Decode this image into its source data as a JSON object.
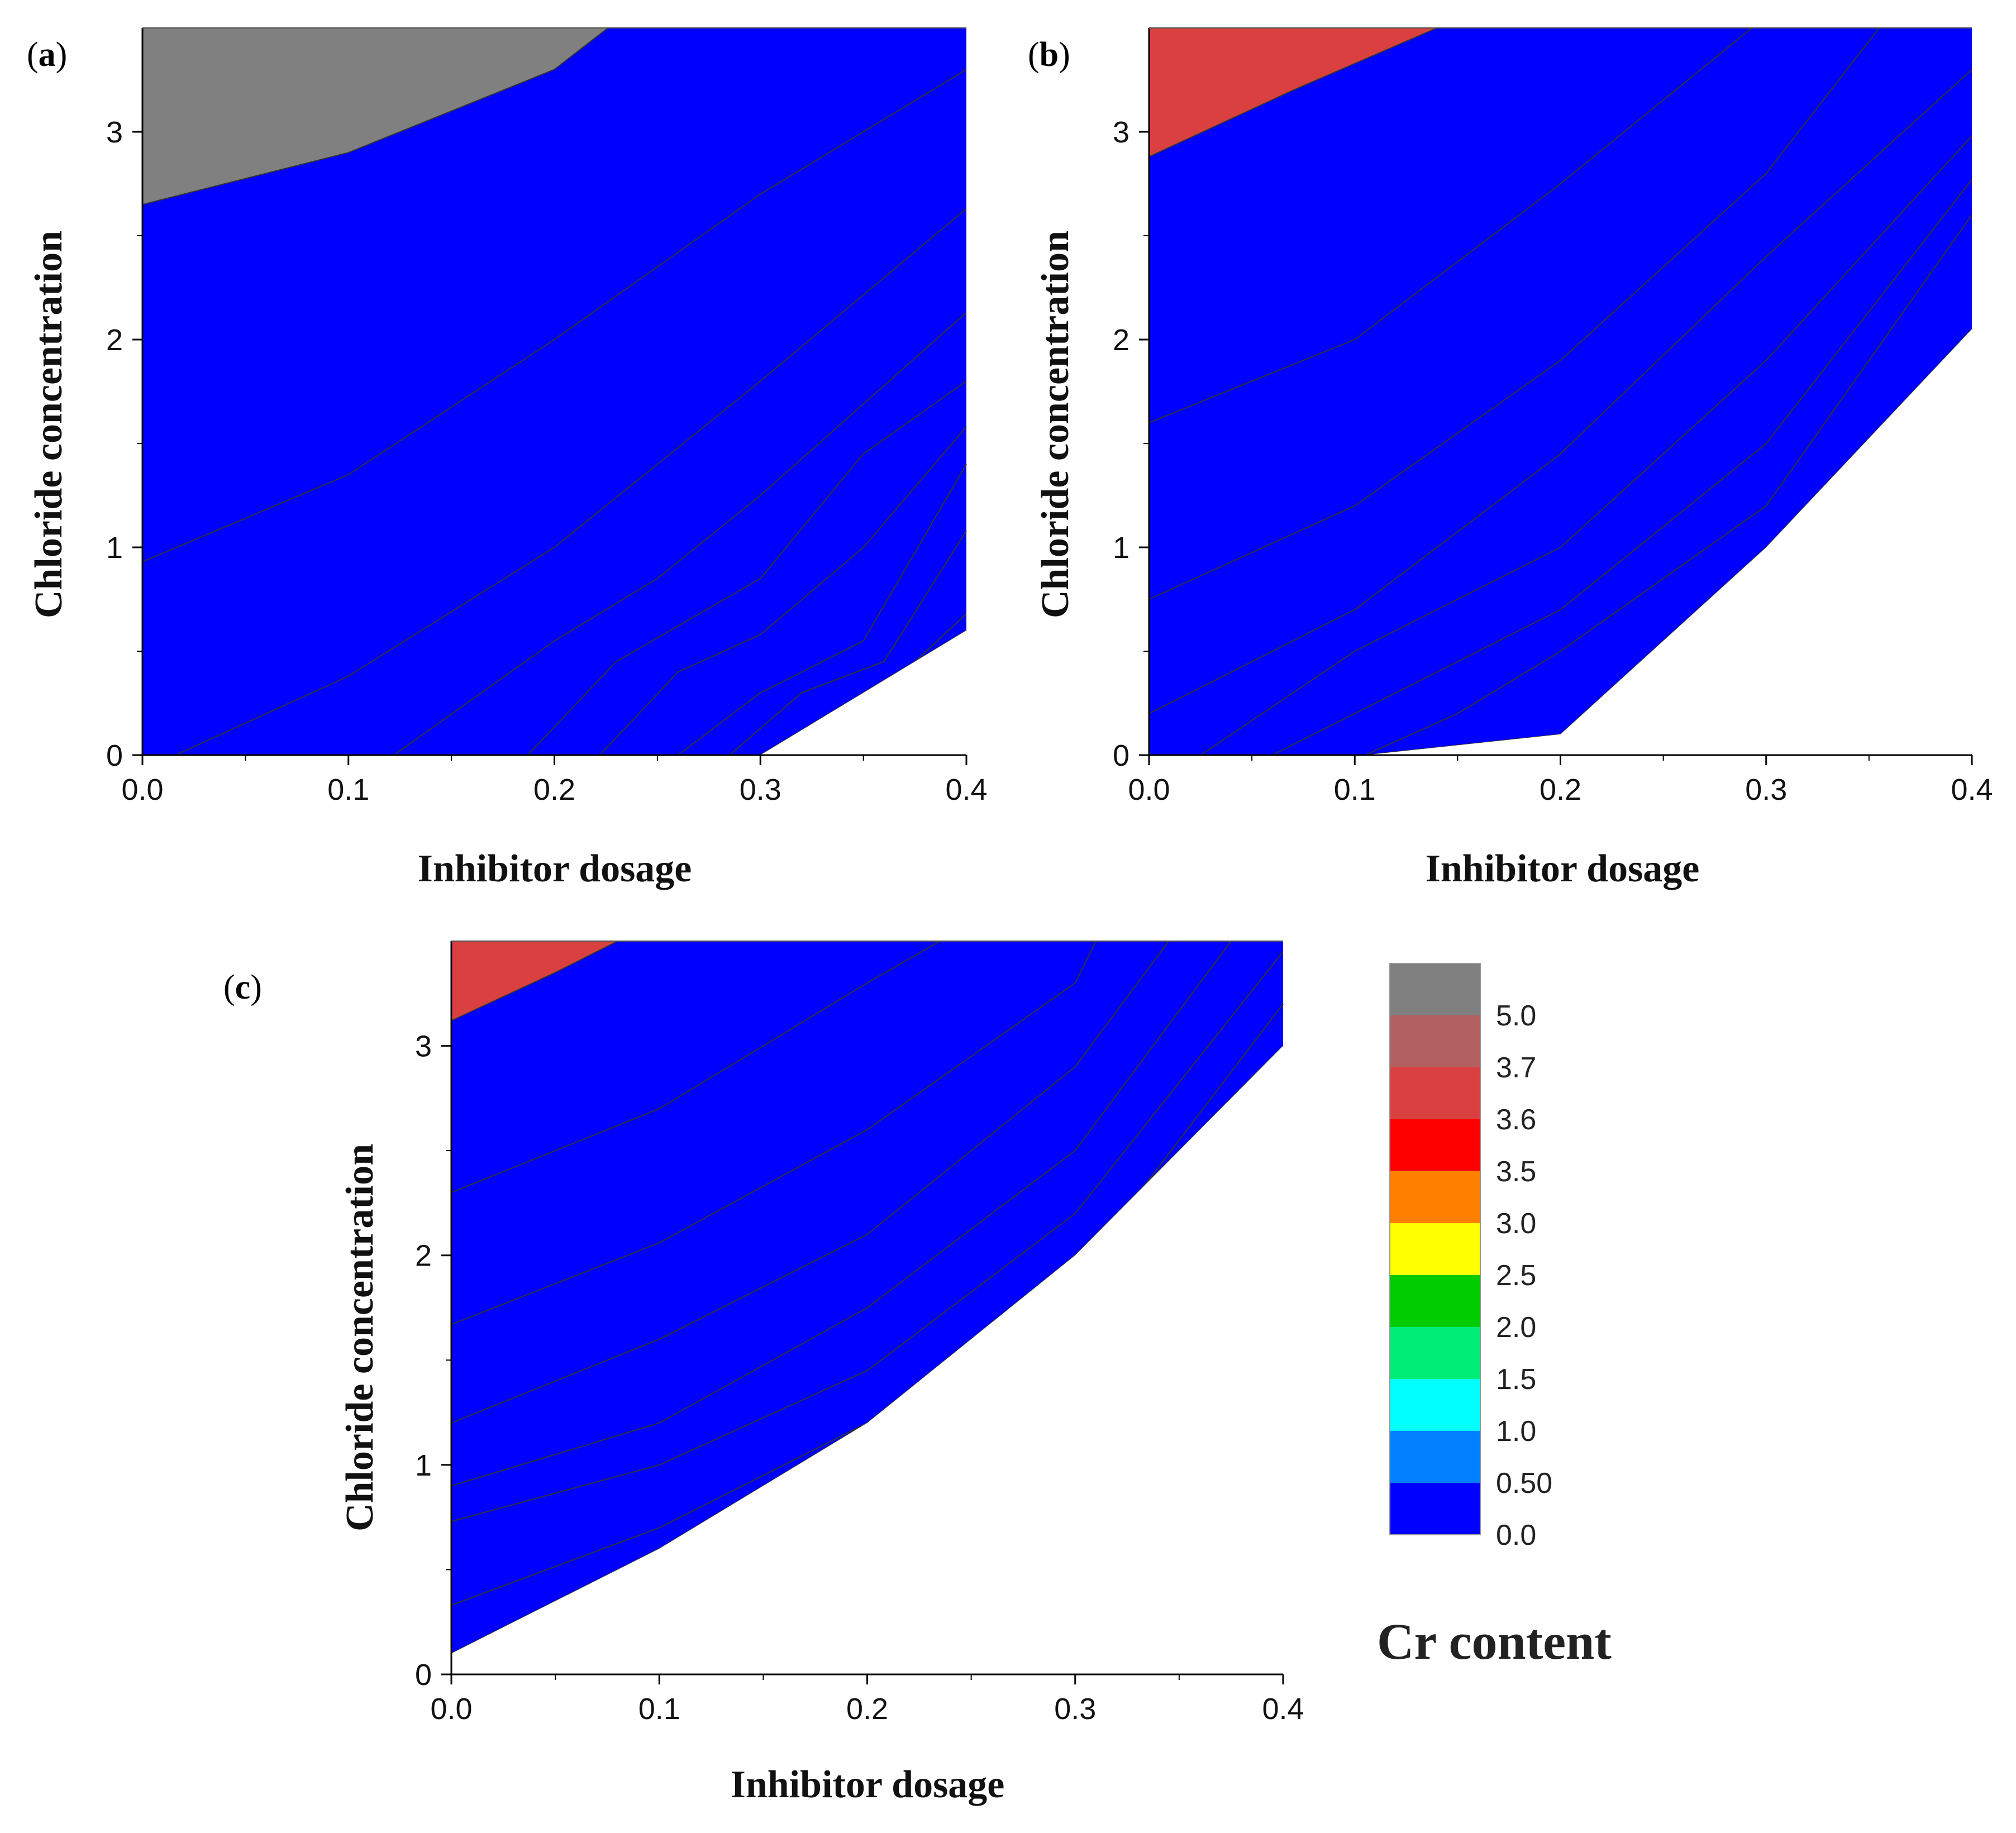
{
  "chart_data": [
    {
      "panel": "a",
      "type": "contour",
      "title": "",
      "xlabel": "Inhibitor dosage",
      "ylabel": "Chloride concentration",
      "xlim": [
        0.0,
        0.4
      ],
      "ylim": [
        0,
        3.5
      ],
      "xticks": [
        "0.0",
        "0.1",
        "0.2",
        "0.3",
        "0.4"
      ],
      "yticks": [
        "0",
        "1",
        "2",
        "3"
      ],
      "contour_boundaries": [
        {
          "level": 3.7,
          "x": [
            0.0,
            0.1,
            0.2,
            0.226
          ],
          "y": [
            2.65,
            2.9,
            3.3,
            3.5
          ]
        },
        {
          "level": 3.6,
          "x": [
            0.0,
            0.1,
            0.2,
            0.3,
            0.4
          ],
          "y": [
            0.93,
            1.35,
            2.0,
            2.7,
            3.3
          ]
        },
        {
          "level": 3.5,
          "x": [
            0.016,
            0.1,
            0.2,
            0.3,
            0.4
          ],
          "y": [
            0.0,
            0.38,
            1.0,
            1.8,
            2.63
          ]
        },
        {
          "level": 3.0,
          "x": [
            0.122,
            0.2,
            0.25,
            0.3,
            0.4
          ],
          "y": [
            0.0,
            0.55,
            0.85,
            1.25,
            2.13
          ]
        },
        {
          "level": 2.5,
          "x": [
            0.187,
            0.23,
            0.3,
            0.35,
            0.4
          ],
          "y": [
            0.0,
            0.45,
            0.85,
            1.45,
            1.8
          ]
        },
        {
          "level": 2.0,
          "x": [
            0.222,
            0.26,
            0.3,
            0.35,
            0.4
          ],
          "y": [
            0.0,
            0.4,
            0.58,
            1.0,
            1.58
          ]
        },
        {
          "level": 1.5,
          "x": [
            0.26,
            0.3,
            0.35,
            0.4
          ],
          "y": [
            0.0,
            0.3,
            0.55,
            1.4
          ]
        },
        {
          "level": 1.0,
          "x": [
            0.285,
            0.32,
            0.36,
            0.4
          ],
          "y": [
            0.0,
            0.3,
            0.45,
            1.08
          ]
        },
        {
          "level": 0.5,
          "x": [
            0.3,
            0.35,
            0.4
          ],
          "y": [
            0.0,
            0.22,
            0.68
          ]
        },
        {
          "level": 0.0,
          "x": [
            0.3,
            0.4
          ],
          "y": [
            0.0,
            0.6
          ]
        }
      ]
    },
    {
      "panel": "b",
      "type": "contour",
      "title": "",
      "xlabel": "Inhibitor dosage",
      "ylabel": "Chloride concentration",
      "xlim": [
        0.0,
        0.4
      ],
      "ylim": [
        0,
        3.5
      ],
      "xticks": [
        "0.0",
        "0.1",
        "0.2",
        "0.3",
        "0.4"
      ],
      "yticks": [
        "0",
        "1",
        "2",
        "3"
      ],
      "contour_boundaries": [
        {
          "level": 3.5,
          "x": [
            0.0,
            0.07,
            0.14
          ],
          "y": [
            2.88,
            3.2,
            3.5
          ]
        },
        {
          "level": 3.0,
          "x": [
            0.0,
            0.1,
            0.2,
            0.293
          ],
          "y": [
            1.6,
            2.0,
            2.75,
            3.5
          ]
        },
        {
          "level": 2.5,
          "x": [
            0.0,
            0.1,
            0.2,
            0.3,
            0.355
          ],
          "y": [
            0.75,
            1.2,
            1.9,
            2.8,
            3.5
          ]
        },
        {
          "level": 2.0,
          "x": [
            0.0,
            0.1,
            0.2,
            0.3,
            0.4
          ],
          "y": [
            0.2,
            0.7,
            1.45,
            2.4,
            3.3
          ]
        },
        {
          "level": 1.5,
          "x": [
            0.025,
            0.1,
            0.2,
            0.3,
            0.4
          ],
          "y": [
            0.0,
            0.5,
            1.0,
            1.9,
            2.98
          ]
        },
        {
          "level": 1.0,
          "x": [
            0.06,
            0.15,
            0.2,
            0.3,
            0.4
          ],
          "y": [
            0.0,
            0.45,
            0.7,
            1.5,
            2.77
          ]
        },
        {
          "level": 0.5,
          "x": [
            0.105,
            0.15,
            0.2,
            0.3,
            0.4
          ],
          "y": [
            0.0,
            0.2,
            0.5,
            1.2,
            2.6
          ]
        },
        {
          "level": 0.0,
          "x": [
            0.105,
            0.2,
            0.3,
            0.4
          ],
          "y": [
            0.0,
            0.1,
            1.0,
            2.05
          ]
        }
      ]
    },
    {
      "panel": "c",
      "type": "contour",
      "title": "",
      "xlabel": "Inhibitor dosage",
      "ylabel": "Chloride concentration",
      "xlim": [
        0.0,
        0.4
      ],
      "ylim": [
        0,
        3.5
      ],
      "xticks": [
        "0.0",
        "0.1",
        "0.2",
        "0.3",
        "0.4"
      ],
      "yticks": [
        "0",
        "1",
        "2",
        "3"
      ],
      "contour_boundaries": [
        {
          "level": 3.5,
          "x": [
            0.0,
            0.05,
            0.08
          ],
          "y": [
            3.12,
            3.35,
            3.5
          ]
        },
        {
          "level": 3.0,
          "x": [
            0.0,
            0.1,
            0.2,
            0.235
          ],
          "y": [
            2.3,
            2.7,
            3.3,
            3.5
          ]
        },
        {
          "level": 2.5,
          "x": [
            0.0,
            0.1,
            0.2,
            0.3,
            0.31
          ],
          "y": [
            1.67,
            2.06,
            2.6,
            3.3,
            3.5
          ]
        },
        {
          "level": 2.0,
          "x": [
            0.0,
            0.1,
            0.2,
            0.3,
            0.345
          ],
          "y": [
            1.2,
            1.6,
            2.1,
            2.9,
            3.5
          ]
        },
        {
          "level": 1.5,
          "x": [
            0.0,
            0.1,
            0.2,
            0.3,
            0.375
          ],
          "y": [
            0.9,
            1.2,
            1.75,
            2.5,
            3.5
          ]
        },
        {
          "level": 1.0,
          "x": [
            0.0,
            0.1,
            0.2,
            0.3,
            0.4
          ],
          "y": [
            0.73,
            1.0,
            1.45,
            2.2,
            3.45
          ]
        },
        {
          "level": 0.5,
          "x": [
            0.0,
            0.1,
            0.2,
            0.3,
            0.4
          ],
          "y": [
            0.33,
            0.7,
            1.2,
            1.9,
            3.2
          ]
        },
        {
          "level": 0.0,
          "x": [
            0.0,
            0.1,
            0.2,
            0.3,
            0.4
          ],
          "y": [
            0.1,
            0.6,
            1.2,
            2.0,
            3.0
          ]
        }
      ]
    }
  ],
  "legend": {
    "title": "Cr content",
    "levels": [
      {
        "label": "5.0",
        "color": "#808080"
      },
      {
        "label": "3.7",
        "color": "#B26060"
      },
      {
        "label": "3.6",
        "color": "#DB4040"
      },
      {
        "label": "3.5",
        "color": "#FF0000"
      },
      {
        "label": "3.0",
        "color": "#FF8000"
      },
      {
        "label": "2.5",
        "color": "#FFFF00"
      },
      {
        "label": "2.0",
        "color": "#00CC00"
      },
      {
        "label": "1.5",
        "color": "#00EE77"
      },
      {
        "label": "1.0",
        "color": "#00FFFF"
      },
      {
        "label": "0.50",
        "color": "#0080FF"
      },
      {
        "label": "0.0",
        "color": "#0000FF"
      }
    ]
  },
  "panel_labels": [
    {
      "open": "(",
      "letter": "a",
      "close": ")"
    },
    {
      "open": "(",
      "letter": "b",
      "close": ")"
    },
    {
      "open": "(",
      "letter": "c",
      "close": ")"
    }
  ],
  "colors": {
    "level_5_0": "#808080",
    "level_3_7": "#B26060",
    "level_3_6": "#DB4040",
    "level_3_5": "#FF0000",
    "level_3_0": "#FF8000",
    "level_2_5": "#FFFF00",
    "level_2_0": "#00CC00",
    "level_1_5": "#00EE77",
    "level_1_0": "#00FFFF",
    "level_0_5": "#0080FF",
    "level_0_0": "#0000FF",
    "background": "#FFFFFF"
  }
}
